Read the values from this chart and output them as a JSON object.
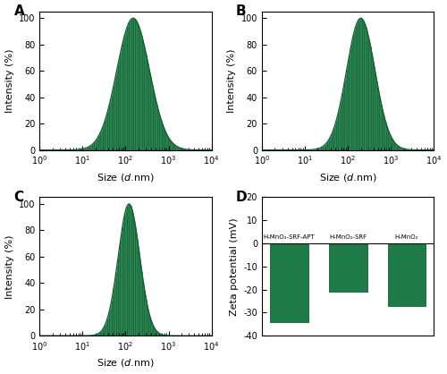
{
  "green_color": "#1e7a46",
  "green_dark": "#155c33",
  "green_edge": "#1a6a3a",
  "background": "#ffffff",
  "panel_A": {
    "label": "A",
    "peak": 150,
    "sigma": 0.38,
    "xlim": [
      1,
      10000
    ],
    "ylim": [
      0,
      105
    ],
    "ylabel": "Intensity (%)",
    "xlabel": "Size ($d$.nm)"
  },
  "panel_B": {
    "label": "B",
    "peak": 200,
    "sigma": 0.33,
    "xlim": [
      1,
      10000
    ],
    "ylim": [
      0,
      105
    ],
    "ylabel": "Intensity (%)",
    "xlabel": "Size ($d$.nm)"
  },
  "panel_C": {
    "label": "C",
    "peak": 120,
    "sigma": 0.25,
    "xlim": [
      1,
      10000
    ],
    "ylim": [
      0,
      105
    ],
    "ylabel": "Intensity (%)",
    "xlabel": "Size ($d$.nm)"
  },
  "panel_D": {
    "label": "D",
    "categories": [
      "H-MnO₂-SRF-APT",
      "H-MnO₂-SRF",
      "H-MnO₂"
    ],
    "values": [
      -34,
      -21,
      -27
    ],
    "ylim": [
      -40,
      20
    ],
    "yticks": [
      -40,
      -30,
      -20,
      -10,
      0,
      10,
      20
    ],
    "ylabel": "Zeta potential (mV)"
  }
}
